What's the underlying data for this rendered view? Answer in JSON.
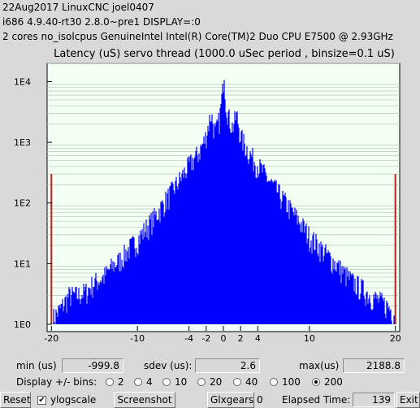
{
  "header": {
    "line1": "22Aug2017 LinuxCNC joel0407",
    "line2": "i686  4.9.40-rt30  2.8.0~pre1  DISPLAY=:0",
    "line3": "2 cores  no_isolcpus   GenuineIntel  Intel(R) Core(TM)2 Duo CPU E7500 @ 2.93GHz"
  },
  "chart_data": {
    "type": "bar",
    "title": "Latency (uS) servo thread (1000.0 uSec period , binsize=0.1 uS)",
    "xlabel": "",
    "ylabel": "",
    "xlim": [
      -20.5,
      20.5
    ],
    "ylim": [
      1,
      20000
    ],
    "ylog": true,
    "x_ticks": [
      -20,
      -10,
      -4,
      -2,
      0,
      2,
      4,
      10,
      20
    ],
    "y_ticks": [
      {
        "value": 1,
        "label": "1E0"
      },
      {
        "value": 10,
        "label": "1E1"
      },
      {
        "value": 100,
        "label": "1E2"
      },
      {
        "value": 1000,
        "label": "1E3"
      },
      {
        "value": 10000,
        "label": "1E4"
      }
    ],
    "grid": true,
    "colors": {
      "bars": "#0000ff",
      "outliers": "#b22222",
      "plot_bg": "#f4fff4",
      "grid": "#b8c8b8"
    },
    "profile": [
      [
        -20,
        1.2
      ],
      [
        -19,
        1.8
      ],
      [
        -18,
        3
      ],
      [
        -17,
        3
      ],
      [
        -16,
        3.5
      ],
      [
        -15,
        5
      ],
      [
        -14,
        6
      ],
      [
        -13,
        9
      ],
      [
        -12,
        12
      ],
      [
        -11,
        18
      ],
      [
        -10,
        25
      ],
      [
        -9,
        40
      ],
      [
        -8,
        60
      ],
      [
        -7,
        100
      ],
      [
        -6,
        160
      ],
      [
        -5,
        260
      ],
      [
        -4,
        430
      ],
      [
        -3,
        650
      ],
      [
        -2.2,
        1100
      ],
      [
        -1.5,
        3000
      ],
      [
        -1,
        1400
      ],
      [
        -0.5,
        2500
      ],
      [
        -0.1,
        8000
      ],
      [
        0,
        20000
      ],
      [
        0.2,
        5000
      ],
      [
        0.6,
        2500
      ],
      [
        1,
        1800
      ],
      [
        1.5,
        2800
      ],
      [
        2,
        1200
      ],
      [
        3,
        650
      ],
      [
        4,
        420
      ],
      [
        5,
        260
      ],
      [
        6,
        170
      ],
      [
        7,
        110
      ],
      [
        8,
        70
      ],
      [
        9,
        45
      ],
      [
        10,
        28
      ],
      [
        11,
        20
      ],
      [
        12,
        14
      ],
      [
        13,
        10
      ],
      [
        14,
        7
      ],
      [
        15,
        5
      ],
      [
        16,
        4
      ],
      [
        17,
        3
      ],
      [
        18,
        2.5
      ],
      [
        19,
        2
      ],
      [
        20,
        1.5
      ]
    ],
    "outliers": [
      {
        "x": -20,
        "y": 300
      },
      {
        "x": 20,
        "y": 300
      }
    ]
  },
  "stats": {
    "min_label": "min (us)",
    "min_value": "-999.8",
    "sdev_label": "sdev (us):",
    "sdev_value": "2.6",
    "max_label": "max(us)",
    "max_value": "2188.8"
  },
  "bins": {
    "label": "Display +/- bins:",
    "options": [
      "2",
      "4",
      "10",
      "20",
      "40",
      "100",
      "200"
    ],
    "selected": "200"
  },
  "toolbar": {
    "reset_label": "Reset",
    "ylogscale_label": "ylogscale",
    "ylogscale_checked": true,
    "screenshot_label": "Screenshot",
    "glxgears_label": "Glxgears",
    "glxgears_value": "0",
    "elapsed_label": "Elapsed Time:",
    "elapsed_value": "139",
    "exit_label": "Exit"
  }
}
